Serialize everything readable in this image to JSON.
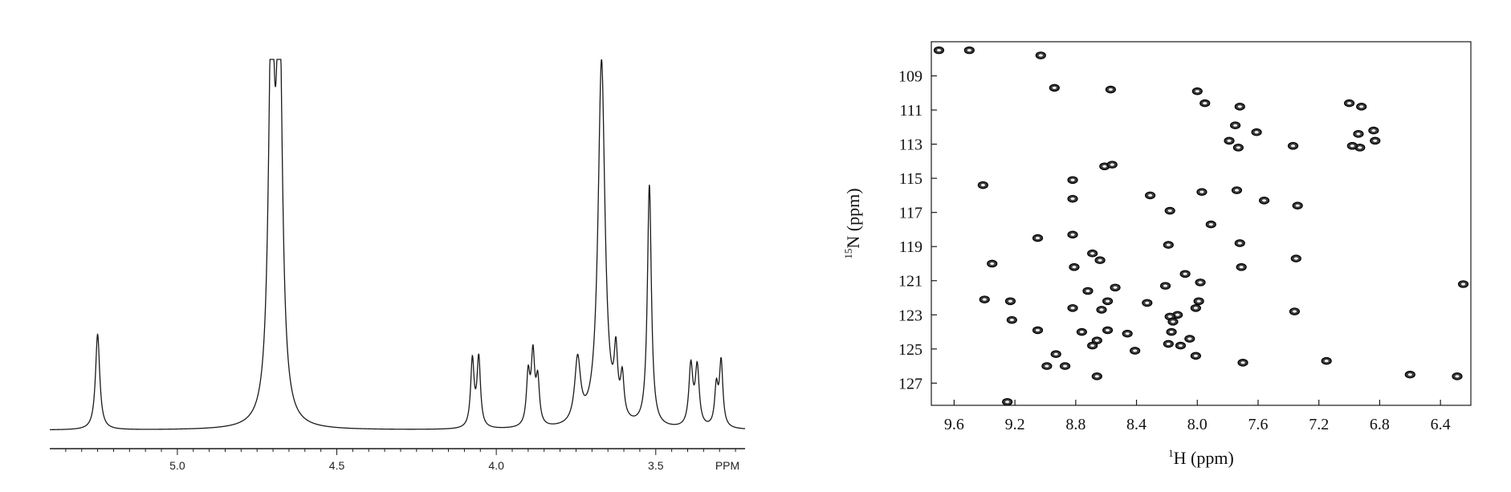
{
  "chart_data": [
    {
      "type": "line",
      "title": "",
      "xlabel": "PPM",
      "ylabel": "",
      "x_direction": "reversed",
      "xlim": [
        5.4,
        3.22
      ],
      "x_ticks": [
        5.0,
        4.5,
        4.0,
        3.5
      ],
      "x_tick_labels": [
        "5.0",
        "4.5",
        "4.0",
        "3.5"
      ],
      "grid": false,
      "peaks": [
        {
          "ppm": 5.25,
          "height": 0.258,
          "width": 0.008
        },
        {
          "ppm": 4.705,
          "height": 1.06,
          "width": 0.011
        },
        {
          "ppm": 4.68,
          "height": 1.06,
          "width": 0.011
        },
        {
          "ppm": 4.075,
          "height": 0.181,
          "width": 0.0065
        },
        {
          "ppm": 4.055,
          "height": 0.186,
          "width": 0.0065
        },
        {
          "ppm": 3.9,
          "height": 0.135,
          "width": 0.0065
        },
        {
          "ppm": 3.885,
          "height": 0.185,
          "width": 0.0065
        },
        {
          "ppm": 3.87,
          "height": 0.118,
          "width": 0.0065
        },
        {
          "ppm": 3.745,
          "height": 0.173,
          "width": 0.011
        },
        {
          "ppm": 3.67,
          "height": 0.99,
          "width": 0.013
        },
        {
          "ppm": 3.625,
          "height": 0.16,
          "width": 0.0065
        },
        {
          "ppm": 3.605,
          "height": 0.11,
          "width": 0.0065
        },
        {
          "ppm": 3.52,
          "height": 0.652,
          "width": 0.0075
        },
        {
          "ppm": 3.39,
          "height": 0.163,
          "width": 0.0075
        },
        {
          "ppm": 3.37,
          "height": 0.158,
          "width": 0.0075
        },
        {
          "ppm": 3.31,
          "height": 0.105,
          "width": 0.0065
        },
        {
          "ppm": 3.295,
          "height": 0.175,
          "width": 0.0065
        }
      ]
    },
    {
      "type": "scatter",
      "title": "",
      "xlabel_prefix": "1",
      "xlabel": "H (ppm)",
      "ylabel_prefix": "15",
      "ylabel": "N (ppm)",
      "x_direction": "reversed",
      "y_direction": "reversed",
      "xlim": [
        9.75,
        6.2
      ],
      "ylim": [
        107,
        128.3
      ],
      "x_ticks": [
        9.6,
        9.2,
        8.8,
        8.4,
        8.0,
        7.6,
        7.2,
        6.8,
        6.4
      ],
      "x_tick_labels": [
        "9.6",
        "9.2",
        "8.8",
        "8.4",
        "8.0",
        "7.6",
        "7.2",
        "6.8",
        "6.4"
      ],
      "y_ticks": [
        109,
        111,
        113,
        115,
        117,
        119,
        121,
        123,
        125,
        127
      ],
      "y_tick_labels": [
        "109",
        "111",
        "113",
        "115",
        "117",
        "119",
        "121",
        "123",
        "125",
        "127"
      ],
      "grid": false,
      "points": [
        [
          9.7,
          107.5
        ],
        [
          9.5,
          107.5
        ],
        [
          9.03,
          107.8
        ],
        [
          8.94,
          109.7
        ],
        [
          8.57,
          109.8
        ],
        [
          8.0,
          109.9
        ],
        [
          7.95,
          110.6
        ],
        [
          7.72,
          110.8
        ],
        [
          7.0,
          110.6
        ],
        [
          6.92,
          110.8
        ],
        [
          7.75,
          111.9
        ],
        [
          7.61,
          112.3
        ],
        [
          7.79,
          112.8
        ],
        [
          7.73,
          113.2
        ],
        [
          7.37,
          113.1
        ],
        [
          6.94,
          112.4
        ],
        [
          6.84,
          112.2
        ],
        [
          6.83,
          112.8
        ],
        [
          6.93,
          113.2
        ],
        [
          6.98,
          113.1
        ],
        [
          8.82,
          115.1
        ],
        [
          8.61,
          114.3
        ],
        [
          8.56,
          114.2
        ],
        [
          9.41,
          115.4
        ],
        [
          8.82,
          116.2
        ],
        [
          8.31,
          116.0
        ],
        [
          7.97,
          115.8
        ],
        [
          7.74,
          115.7
        ],
        [
          7.56,
          116.3
        ],
        [
          7.34,
          116.6
        ],
        [
          8.18,
          116.9
        ],
        [
          7.91,
          117.7
        ],
        [
          9.05,
          118.5
        ],
        [
          8.82,
          118.3
        ],
        [
          8.19,
          118.9
        ],
        [
          7.72,
          118.8
        ],
        [
          7.35,
          119.7
        ],
        [
          8.69,
          119.4
        ],
        [
          8.64,
          119.8
        ],
        [
          9.35,
          120.0
        ],
        [
          7.71,
          120.2
        ],
        [
          8.81,
          120.2
        ],
        [
          8.08,
          120.6
        ],
        [
          8.21,
          121.3
        ],
        [
          7.98,
          121.1
        ],
        [
          8.54,
          121.4
        ],
        [
          8.72,
          121.6
        ],
        [
          6.25,
          121.2
        ],
        [
          9.4,
          122.1
        ],
        [
          9.23,
          122.2
        ],
        [
          8.59,
          122.2
        ],
        [
          8.33,
          122.3
        ],
        [
          8.82,
          122.6
        ],
        [
          8.63,
          122.7
        ],
        [
          8.13,
          123.0
        ],
        [
          7.99,
          122.2
        ],
        [
          8.01,
          122.6
        ],
        [
          8.18,
          123.1
        ],
        [
          8.16,
          123.4
        ],
        [
          9.22,
          123.3
        ],
        [
          7.36,
          122.8
        ],
        [
          9.05,
          123.9
        ],
        [
          8.76,
          124.0
        ],
        [
          8.59,
          123.9
        ],
        [
          8.46,
          124.1
        ],
        [
          8.17,
          124.0
        ],
        [
          8.05,
          124.4
        ],
        [
          8.19,
          124.7
        ],
        [
          8.11,
          124.8
        ],
        [
          8.66,
          124.5
        ],
        [
          8.69,
          124.8
        ],
        [
          8.41,
          125.1
        ],
        [
          8.93,
          125.3
        ],
        [
          8.99,
          126.0
        ],
        [
          8.87,
          126.0
        ],
        [
          8.01,
          125.4
        ],
        [
          7.7,
          125.8
        ],
        [
          7.15,
          125.7
        ],
        [
          8.66,
          126.6
        ],
        [
          6.6,
          126.5
        ],
        [
          6.29,
          126.6
        ],
        [
          9.25,
          128.1
        ]
      ]
    }
  ]
}
